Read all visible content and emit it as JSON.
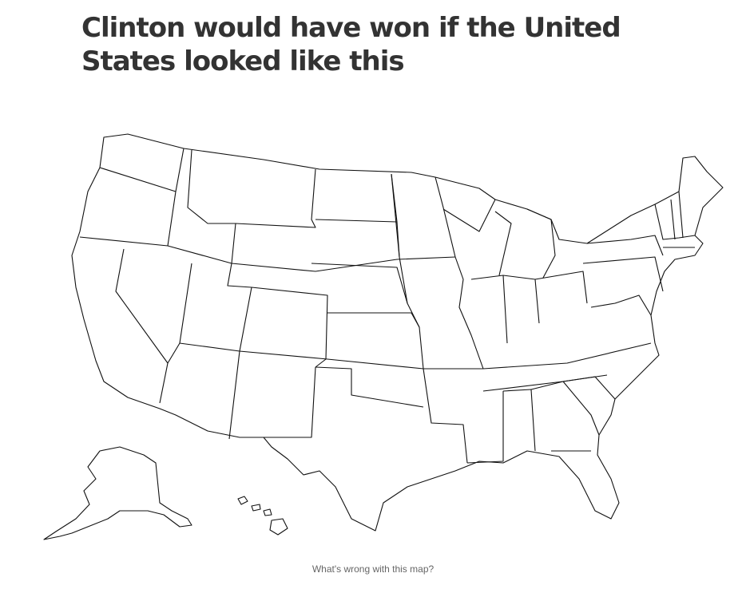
{
  "headline": "Clinton would have won if the United States looked like this",
  "caption": "What's wrong with this map?",
  "map": {
    "subject": "United States state outlines",
    "style": "black outlines on white, unfilled",
    "outline_color": "#111111",
    "background_color": "#ffffff"
  }
}
